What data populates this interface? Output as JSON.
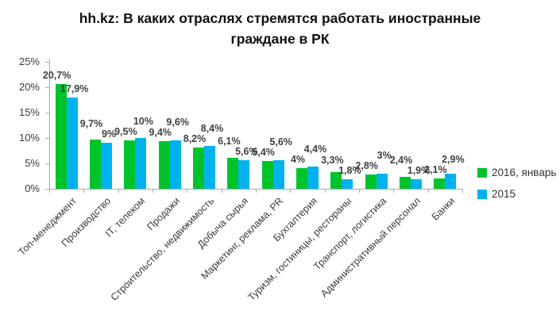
{
  "title": "hh.kz: В каких отраслях стремятся работать иностранные граждане в РК",
  "colors": {
    "series_2016": "#00C32B",
    "series_2015": "#00B3EE",
    "axis": "#ABABAB",
    "label_text": "#3F3F3F",
    "title_text": "#111111"
  },
  "legend": {
    "position": "right",
    "items": [
      {
        "label": "2016, январь",
        "color": "#00C32B"
      },
      {
        "label": "2015",
        "color": "#00B3EE"
      }
    ]
  },
  "y_axis": {
    "ticks": [
      "0%",
      "5%",
      "10%",
      "15%",
      "20%",
      "25%"
    ],
    "tick_values": [
      0,
      5,
      10,
      15,
      20,
      25
    ],
    "min": 0,
    "max": 25
  },
  "chart_data": {
    "type": "bar",
    "title": "hh.kz: В каких отраслях стремятся работать иностранные граждане в РК",
    "xlabel": "",
    "ylabel": "",
    "ylim": [
      0,
      25
    ],
    "grid": false,
    "legend_position": "right",
    "categories": [
      "Топ-менеджмент",
      "Производство",
      "IT, телеком",
      "Продажи",
      "Строительство, недвижимость",
      "Добыча сырья",
      "Маркетинг, реклама, PR",
      "Бухгалтерия",
      "Туризм, гостиницы, рестораны",
      "Транспорт, логистика",
      "Административный персонал",
      "Банки"
    ],
    "series": [
      {
        "name": "2016, январь",
        "color": "#00C32B",
        "values": [
          20.7,
          9.7,
          9.5,
          9.4,
          8.2,
          6.1,
          5.4,
          4,
          3.3,
          2.8,
          2.4,
          2.1
        ],
        "labels": [
          "20,7%",
          "9,7%",
          "9,5%",
          "9,4%",
          "8,2%",
          "6,1%",
          "5,4%",
          "4%",
          "3,3%",
          "2,8%",
          "2,4%",
          "2,1%"
        ]
      },
      {
        "name": "2015",
        "color": "#00B3EE",
        "values": [
          17.9,
          9,
          10,
          9.6,
          8.4,
          5.6,
          5.6,
          4.4,
          1.8,
          3,
          1.9,
          2.9
        ],
        "labels": [
          "17,9%",
          "9%",
          "10%",
          "9,6%",
          "8,4%",
          "5,6%",
          "5,6%",
          "4,4%",
          "1,8%",
          "3%",
          "1,9%",
          "2,9%"
        ]
      }
    ]
  }
}
